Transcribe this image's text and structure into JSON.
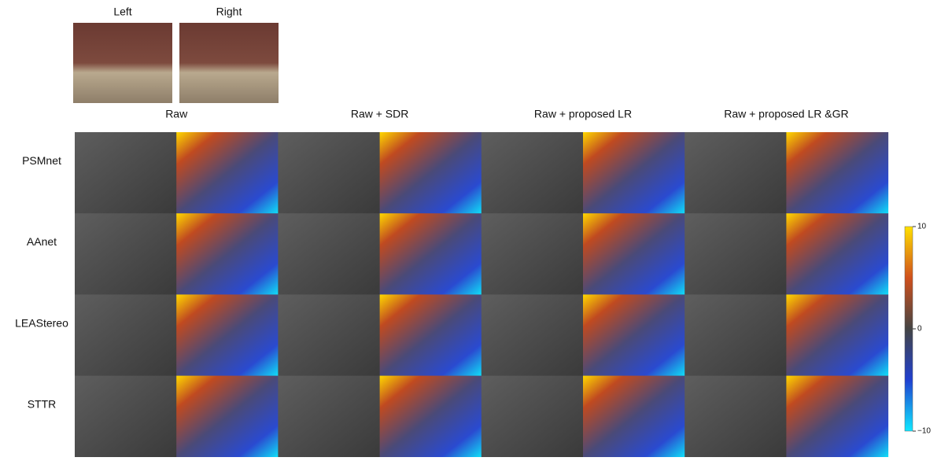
{
  "images": {
    "left": "Left",
    "right": "Right"
  },
  "columns": [
    "Raw",
    "Raw + SDR",
    "Raw + proposed LR",
    "Raw + proposed LR &GR"
  ],
  "rows": [
    "PSMnet",
    "AAnet",
    "LEAStereo",
    "STTR"
  ],
  "colorbar": {
    "lim": [
      -10,
      10
    ],
    "ticks": [
      10,
      0,
      {
        "value": -10,
        "label": "−10"
      }
    ]
  }
}
